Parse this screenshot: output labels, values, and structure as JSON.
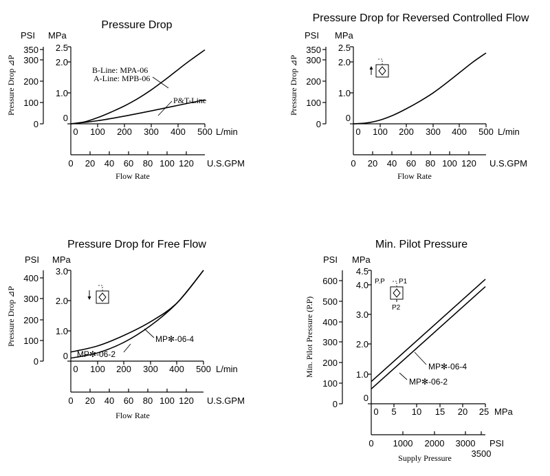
{
  "chart_data": [
    {
      "id": "c1",
      "type": "line",
      "title": "Pressure Drop",
      "xlabel": "Flow Rate",
      "ylabel": "Pressure Drop ⊿P",
      "y_units": {
        "left": "PSI",
        "right": "MPa"
      },
      "x_units": {
        "primary": "L/min",
        "secondary": "U.S.GPM"
      },
      "xlim": [
        0,
        500
      ],
      "ylim": [
        0,
        2.5
      ],
      "x_ticks": [
        "0",
        "100",
        "200",
        "300",
        "400",
        "500"
      ],
      "x2_ticks": [
        "0",
        "20",
        "40",
        "60",
        "80",
        "100",
        "120"
      ],
      "y_mpa_ticks": [
        "0",
        "1.0",
        "2.0",
        "2.5"
      ],
      "y_psi_ticks": [
        "0",
        "100",
        "200",
        "300",
        "350"
      ],
      "series": [
        {
          "name": "B-Line: MPA-06 / A-Line: MPB-06",
          "x": [
            0,
            50,
            100,
            150,
            200,
            250,
            300,
            350,
            400,
            450,
            500
          ],
          "y": [
            0,
            0.06,
            0.2,
            0.38,
            0.58,
            0.82,
            1.1,
            1.42,
            1.76,
            2.09,
            2.4
          ]
        },
        {
          "name": "P&T-Line",
          "x": [
            0,
            100,
            200,
            300,
            400,
            500
          ],
          "y": [
            0,
            0.1,
            0.25,
            0.42,
            0.6,
            0.78
          ]
        }
      ],
      "annotations": [
        "B-Line: MPA-06",
        "A-Line: MPB-06",
        "P&T-Line"
      ]
    },
    {
      "id": "c2",
      "type": "line",
      "title": "Pressure Drop for Reversed Controlled Flow",
      "xlabel": "Flow Rate",
      "ylabel": "Pressure Drop ⊿P",
      "y_units": {
        "left": "PSI",
        "right": "MPa"
      },
      "x_units": {
        "primary": "L/min",
        "secondary": "U.S.GPM"
      },
      "xlim": [
        0,
        500
      ],
      "ylim": [
        0,
        2.5
      ],
      "x_ticks": [
        "0",
        "100",
        "200",
        "300",
        "400",
        "500"
      ],
      "x2_ticks": [
        "0",
        "20",
        "40",
        "60",
        "80",
        "100",
        "120"
      ],
      "y_mpa_ticks": [
        "0",
        "1.0",
        "2.0",
        "2.5"
      ],
      "y_psi_ticks": [
        "0",
        "100",
        "200",
        "300",
        "350"
      ],
      "series": [
        {
          "name": "Reversed controlled flow",
          "x": [
            0,
            50,
            100,
            150,
            200,
            250,
            300,
            350,
            400,
            450,
            500
          ],
          "y": [
            0,
            0.03,
            0.12,
            0.28,
            0.49,
            0.73,
            1.0,
            1.32,
            1.66,
            2.0,
            2.3
          ]
        }
      ],
      "annotations": []
    },
    {
      "id": "c3",
      "type": "line",
      "title": "Pressure Drop for Free Flow",
      "xlabel": "Flow Rate",
      "ylabel": "Pressure Drop ⊿P",
      "y_units": {
        "left": "PSI",
        "right": "MPa"
      },
      "x_units": {
        "primary": "L/min",
        "secondary": "U.S.GPM"
      },
      "xlim": [
        0,
        500
      ],
      "ylim": [
        0,
        3.0
      ],
      "x_ticks": [
        "0",
        "100",
        "200",
        "300",
        "400",
        "500"
      ],
      "x2_ticks": [
        "0",
        "20",
        "40",
        "60",
        "80",
        "100",
        "120"
      ],
      "y_mpa_ticks": [
        "0",
        "1.0",
        "2.0",
        "3.0"
      ],
      "y_psi_ticks": [
        "0",
        "100",
        "200",
        "300",
        "400"
      ],
      "series": [
        {
          "name": "MP✻-06-4",
          "x": [
            0,
            100,
            200,
            300,
            400,
            500
          ],
          "y": [
            0.3,
            0.5,
            0.85,
            1.3,
            1.92,
            3.0
          ]
        },
        {
          "name": "MP✻-06-2",
          "x": [
            0,
            100,
            200,
            300,
            400,
            500
          ],
          "y": [
            0.1,
            0.27,
            0.62,
            1.17,
            1.92,
            3.0
          ]
        }
      ],
      "annotations": [
        "MP✻-06-4",
        "MP✻-06-2"
      ]
    },
    {
      "id": "c4",
      "type": "line",
      "title": "Min. Pilot Pressure",
      "xlabel": "Supply Pressure",
      "ylabel": "Min. Pilot Pressure (P.P)",
      "y_units": {
        "left": "PSI",
        "right": "MPa"
      },
      "x_units": {
        "primary": "MPa",
        "secondary": "PSI"
      },
      "xlim": [
        0,
        25
      ],
      "ylim": [
        0,
        4.5
      ],
      "x_ticks": [
        "0",
        "5",
        "10",
        "15",
        "20",
        "25"
      ],
      "x2_ticks": [
        "0",
        "1000",
        "2000",
        "3000",
        "3500"
      ],
      "y_mpa_ticks": [
        "0",
        "1.0",
        "2.0",
        "3.0",
        "4.0",
        "4.5"
      ],
      "y_psi_ticks": [
        "0",
        "100",
        "200",
        "300",
        "400",
        "500",
        "600"
      ],
      "series": [
        {
          "name": "MP✻-06-4",
          "x": [
            0,
            25
          ],
          "y": [
            0.75,
            4.2
          ]
        },
        {
          "name": "MP✻-06-2",
          "x": [
            0,
            25
          ],
          "y": [
            0.5,
            3.95
          ]
        }
      ],
      "annotations": [
        "MP✻-06-4",
        "MP✻-06-2"
      ]
    }
  ],
  "symbol_labels": {
    "pp": "P.P",
    "p1": "P1",
    "p2": "P2"
  }
}
